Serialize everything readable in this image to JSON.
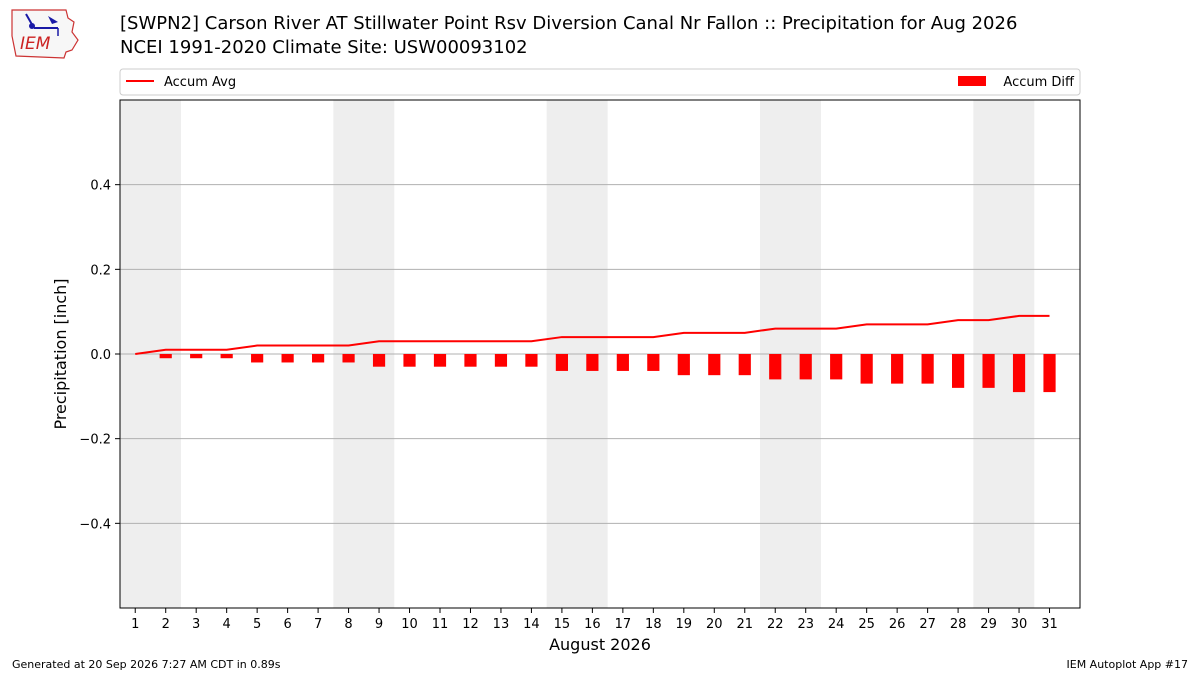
{
  "header": {
    "title_line1": "[SWPN2] Carson River  AT Stillwater Point Rsv Diversion Canal Nr Fallon :: Precipitation for Aug 2026",
    "title_line2": "NCEI 1991-2020 Climate Site: USW00093102",
    "logo_text": "IEM"
  },
  "footer": {
    "left": "Generated at 20 Sep 2026 7:27 AM CDT in 0.89s",
    "right": "IEM Autoplot App #17"
  },
  "colors": {
    "series": "#ff0000",
    "shade": "#eeeeee",
    "grid": "#b0b0b0"
  },
  "chart_data": {
    "type": "bar",
    "xlabel": "August 2026",
    "ylabel": "Precipitation [inch]",
    "ylim": [
      -0.6,
      0.6
    ],
    "yticks": [
      -0.4,
      -0.2,
      0.0,
      0.2,
      0.4
    ],
    "ytick_labels": [
      "−0.4",
      "−0.2",
      "0.0",
      "0.2",
      "0.4"
    ],
    "categories": [
      "1",
      "2",
      "3",
      "4",
      "5",
      "6",
      "7",
      "8",
      "9",
      "10",
      "11",
      "12",
      "13",
      "14",
      "15",
      "16",
      "17",
      "18",
      "19",
      "20",
      "21",
      "22",
      "23",
      "24",
      "25",
      "26",
      "27",
      "28",
      "29",
      "30",
      "31"
    ],
    "grid": "horizontal",
    "legend_placement": "top, above plot",
    "shaded_days": [
      [
        1,
        2
      ],
      [
        8,
        9
      ],
      [
        15,
        16
      ],
      [
        22,
        23
      ],
      [
        29,
        30
      ]
    ],
    "series": [
      {
        "name": "Accum Avg",
        "type": "line",
        "values": [
          0.0,
          0.01,
          0.01,
          0.01,
          0.02,
          0.02,
          0.02,
          0.02,
          0.03,
          0.03,
          0.03,
          0.03,
          0.03,
          0.03,
          0.04,
          0.04,
          0.04,
          0.04,
          0.05,
          0.05,
          0.05,
          0.06,
          0.06,
          0.06,
          0.07,
          0.07,
          0.07,
          0.08,
          0.08,
          0.09,
          0.09
        ]
      },
      {
        "name": "Accum Diff",
        "type": "bar",
        "values": [
          0.0,
          -0.01,
          -0.01,
          -0.01,
          -0.02,
          -0.02,
          -0.02,
          -0.02,
          -0.03,
          -0.03,
          -0.03,
          -0.03,
          -0.03,
          -0.03,
          -0.04,
          -0.04,
          -0.04,
          -0.04,
          -0.05,
          -0.05,
          -0.05,
          -0.06,
          -0.06,
          -0.06,
          -0.07,
          -0.07,
          -0.07,
          -0.08,
          -0.08,
          -0.09,
          -0.09
        ]
      }
    ]
  }
}
